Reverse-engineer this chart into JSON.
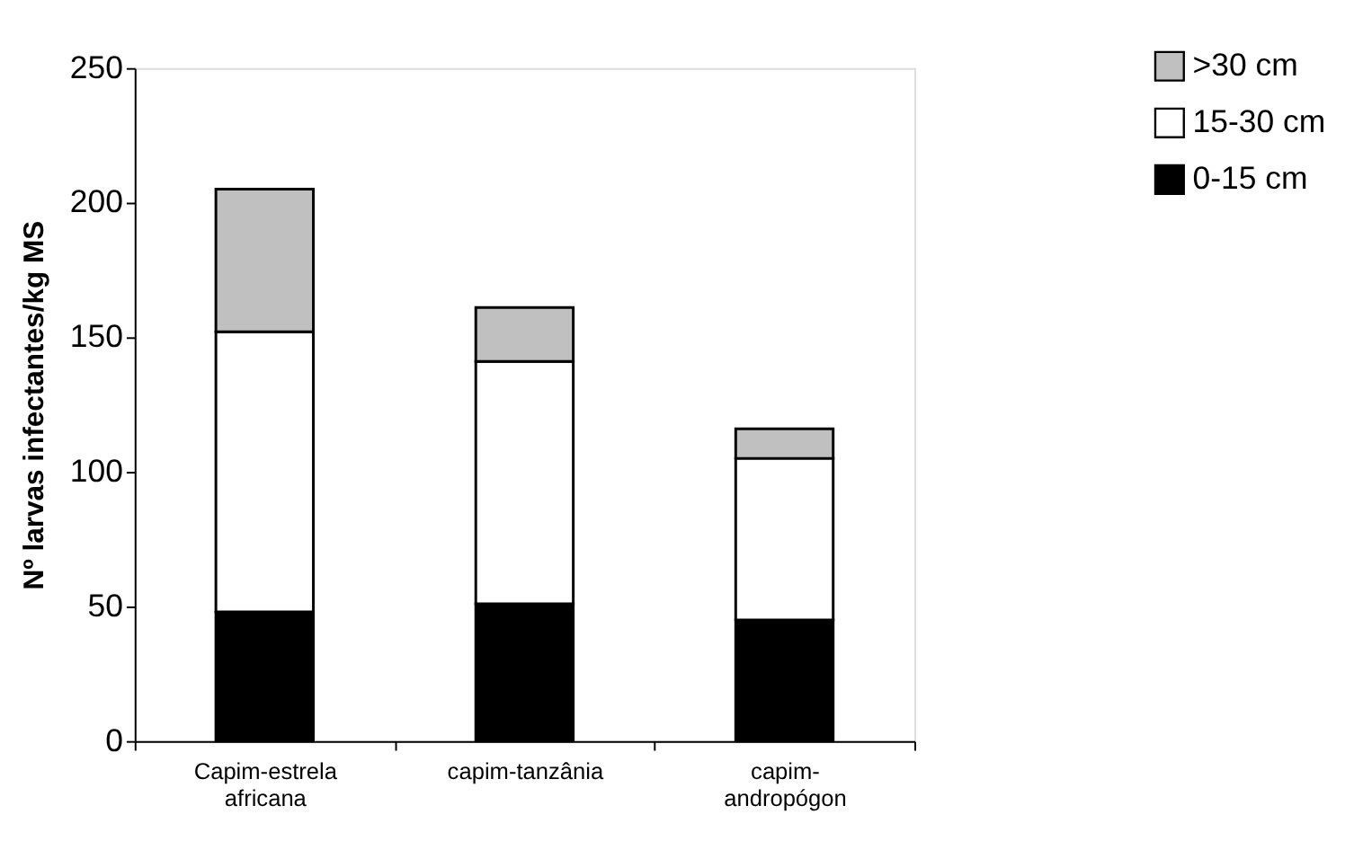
{
  "chart_data": {
    "type": "bar",
    "stacked": true,
    "ylabel": "Nº larvas infectantes/kg MS",
    "categories": [
      "Capim-estrela africana",
      "capim-tanzânia",
      "capim-andropógon"
    ],
    "series": [
      {
        "name": "0-15 cm",
        "color": "#000000",
        "values": [
          48,
          51,
          45
        ]
      },
      {
        "name": "15-30 cm",
        "color": "#ffffff",
        "values": [
          104,
          90,
          60
        ]
      },
      {
        "name": ">30 cm",
        "color": "#c0c0c0",
        "values": [
          53,
          20,
          11
        ]
      }
    ],
    "ylim": [
      0,
      250
    ],
    "yticks": [
      0,
      50,
      100,
      150,
      200,
      250
    ],
    "grid": false,
    "legend": "top right"
  }
}
